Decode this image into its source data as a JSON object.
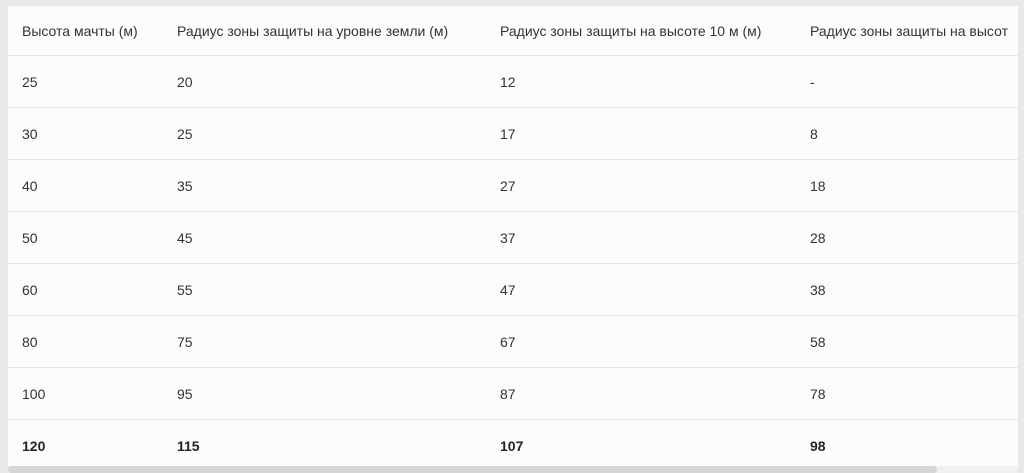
{
  "table": {
    "headers": [
      "Высота мачты (м)",
      "Радиус зоны защиты на уровне земли (м)",
      "Радиус зоны защиты на высоте 10 м (м)",
      "Радиус зоны защиты на высот"
    ],
    "rows": [
      [
        "25",
        "20",
        "12",
        "-"
      ],
      [
        "30",
        "25",
        "17",
        "8"
      ],
      [
        "40",
        "35",
        "27",
        "18"
      ],
      [
        "50",
        "45",
        "37",
        "28"
      ],
      [
        "60",
        "55",
        "47",
        "38"
      ],
      [
        "80",
        "75",
        "67",
        "58"
      ],
      [
        "100",
        "95",
        "87",
        "78"
      ],
      [
        "120",
        "115",
        "107",
        "98"
      ]
    ]
  },
  "scrollbar": {
    "horizontal_position_fraction": 0.0,
    "visible_fraction": 0.92
  }
}
